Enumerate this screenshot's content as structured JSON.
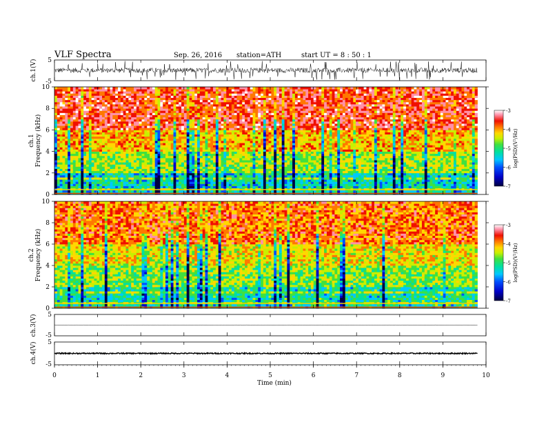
{
  "header": {
    "title": "VLF  Spectra",
    "date": "Sep. 26, 2016",
    "station": "station=ATH",
    "start": "start  UT  =   8  : 50 : 1"
  },
  "colors": {
    "scale": [
      "#000040",
      "#0000c8",
      "#0050ff",
      "#00c8ff",
      "#00e0a0",
      "#40e040",
      "#c8f000",
      "#ffd800",
      "#ff7800",
      "#f01000",
      "#ff90a8",
      "#ffffff"
    ]
  },
  "chart_data": [
    {
      "type": "line",
      "panel": "ch1-waveform",
      "ylabel": "ch.1(V)",
      "yticks": [
        "5",
        "-5"
      ],
      "ylim": [
        -5,
        5
      ],
      "description_values": {
        "baseline": 0,
        "typical_amplitude": 1.2,
        "spike_peak": 4.5
      }
    },
    {
      "type": "heatmap",
      "panel": "ch1-spectrogram",
      "ylabel_top": "ch.1",
      "ylabel": "Frequency  (kHz)",
      "yticks": [
        "0",
        "2",
        "4",
        "6",
        "8",
        "10"
      ],
      "ylim": [
        0,
        10
      ],
      "colorbar_label": "log(PSD)(V²/Hz)",
      "colorbar_ticks": [
        "-3",
        "-4",
        "-5",
        "-6",
        "-7"
      ],
      "clim": [
        -7,
        -3
      ],
      "level_by_freq_khz": {
        "0-2": -5.6,
        "2-4": -4.9,
        "4-6": -4.4,
        "6-10": -3.8
      }
    },
    {
      "type": "heatmap",
      "panel": "ch2-spectrogram",
      "ylabel_top": "ch.2",
      "ylabel": "Frequency  (kHz)",
      "yticks": [
        "0",
        "2",
        "4",
        "6",
        "8",
        "10"
      ],
      "ylim": [
        0,
        10
      ],
      "colorbar_label": "log(PSD)(V²/Hz)",
      "colorbar_ticks": [
        "-3",
        "-4",
        "-5",
        "-6",
        "-7"
      ],
      "clim": [
        -7,
        -3
      ],
      "level_by_freq_khz": {
        "0-2": -5.5,
        "2-4": -5.0,
        "4-6": -4.6,
        "6-10": -4.1
      }
    },
    {
      "type": "line",
      "panel": "ch3-waveform",
      "ylabel": "ch.3(V)",
      "yticks": [
        "5",
        "-5"
      ],
      "ylim": [
        -5,
        5
      ],
      "description_values": {
        "baseline": 0,
        "typical_amplitude": 0.1
      }
    },
    {
      "type": "line",
      "panel": "ch4-waveform",
      "ylabel": "ch.4(V)",
      "yticks": [
        "5",
        "-5"
      ],
      "ylim": [
        -5,
        5
      ],
      "description_values": {
        "baseline": 0,
        "typical_amplitude": 0.25
      }
    },
    {
      "type": "axis",
      "panel": "time-axis",
      "xlabel": "Time  (min)",
      "xticks": [
        "0",
        "1",
        "2",
        "3",
        "4",
        "5",
        "6",
        "7",
        "8",
        "9",
        "10"
      ],
      "xlim": [
        0,
        10
      ],
      "data_end_min": 9.8
    }
  ]
}
